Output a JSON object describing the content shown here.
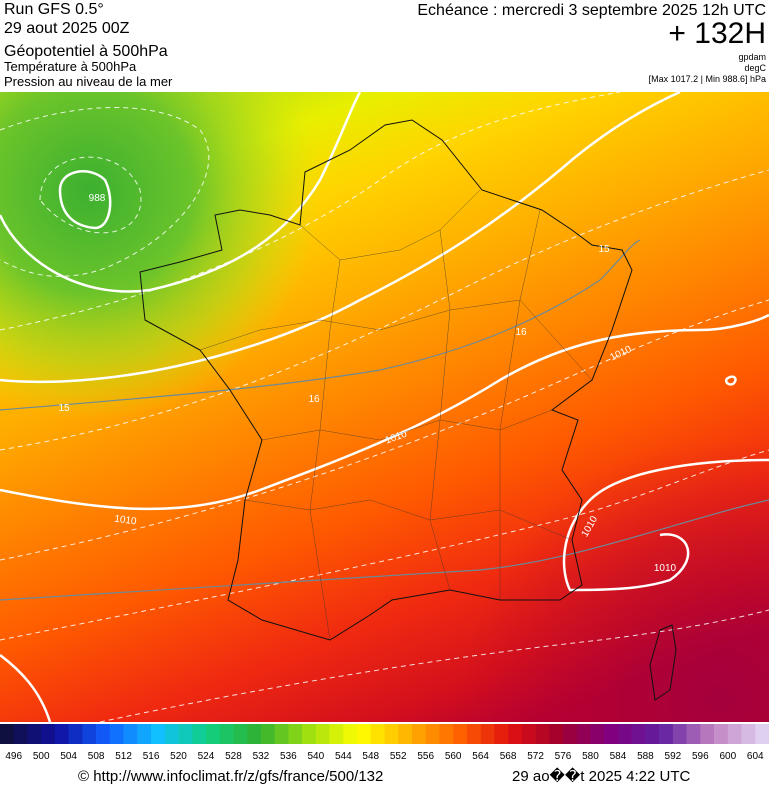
{
  "header": {
    "left": [
      "Run GFS 0.5°",
      "29 aout 2025 00Z",
      "Géopotentiel à 500hPa",
      "Température à 500hPa",
      "Pression au niveau de la mer"
    ],
    "right": [
      "Echéance : mercredi 3 septembre 2025 12h UTC",
      "+ 132H",
      "gpdam",
      "degC",
      "[Max 1017.2 | Min 988.6] hPa"
    ]
  },
  "map": {
    "contour_labels": [
      "988",
      "1010",
      "1010",
      "1010",
      "1010",
      "1010",
      "15",
      "16",
      "16",
      "15"
    ]
  },
  "colorbar": {
    "labels": [
      496,
      500,
      504,
      508,
      512,
      516,
      520,
      524,
      528,
      532,
      536,
      540,
      544,
      548,
      552,
      556,
      560,
      564,
      568,
      572,
      576,
      580,
      584,
      588,
      592,
      596,
      600,
      604
    ]
  },
  "footer": {
    "source": "© http://www.infoclimat.fr/z/gfs/france/500/132",
    "date": "29 ao��t 2025  4:22 UTC"
  }
}
